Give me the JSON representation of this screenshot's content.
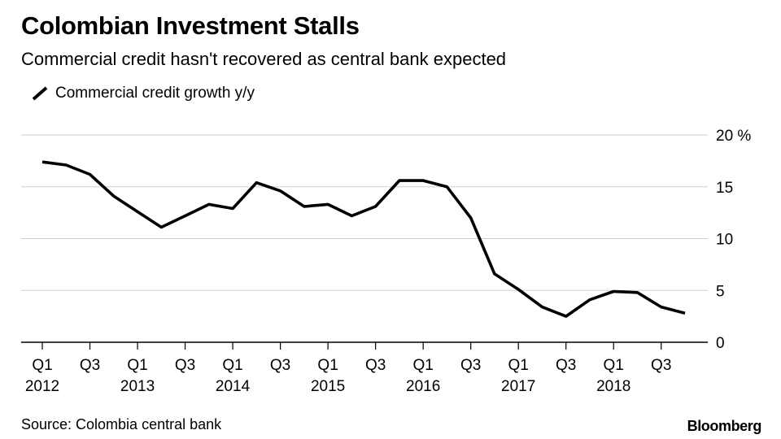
{
  "chart_data": {
    "type": "line",
    "title": "Colombian Investment Stalls",
    "subtitle": "Commercial credit hasn't recovered as central bank expected",
    "series": [
      {
        "name": "Commercial credit growth y/y",
        "color": "#000000",
        "values": [
          17.4,
          17.1,
          16.2,
          14.1,
          12.6,
          11.1,
          12.2,
          13.3,
          12.9,
          15.4,
          14.6,
          13.1,
          13.3,
          12.2,
          13.1,
          15.6,
          15.6,
          15.0,
          12.0,
          6.6,
          5.1,
          3.4,
          2.5,
          4.1,
          4.9,
          4.8,
          3.4,
          2.8
        ]
      }
    ],
    "x_ticks": [
      {
        "index": 0,
        "quarter": "Q1",
        "year": "2012"
      },
      {
        "index": 2,
        "quarter": "Q3",
        "year": ""
      },
      {
        "index": 4,
        "quarter": "Q1",
        "year": "2013"
      },
      {
        "index": 6,
        "quarter": "Q3",
        "year": ""
      },
      {
        "index": 8,
        "quarter": "Q1",
        "year": "2014"
      },
      {
        "index": 10,
        "quarter": "Q3",
        "year": ""
      },
      {
        "index": 12,
        "quarter": "Q1",
        "year": "2015"
      },
      {
        "index": 14,
        "quarter": "Q3",
        "year": ""
      },
      {
        "index": 16,
        "quarter": "Q1",
        "year": "2016"
      },
      {
        "index": 18,
        "quarter": "Q3",
        "year": ""
      },
      {
        "index": 20,
        "quarter": "Q1",
        "year": "2017"
      },
      {
        "index": 22,
        "quarter": "Q3",
        "year": ""
      },
      {
        "index": 24,
        "quarter": "Q1",
        "year": "2018"
      },
      {
        "index": 26,
        "quarter": "Q3",
        "year": ""
      }
    ],
    "y_ticks": [
      {
        "value": 20,
        "label": "20 %"
      },
      {
        "value": 15,
        "label": "15"
      },
      {
        "value": 10,
        "label": "10"
      },
      {
        "value": 5,
        "label": "5"
      },
      {
        "value": 0,
        "label": "0"
      }
    ],
    "ylim": [
      0,
      20
    ],
    "grid": true,
    "legend_position": "top-left"
  },
  "footer": {
    "source": "Source: Colombia central bank",
    "brand": "Bloomberg"
  }
}
